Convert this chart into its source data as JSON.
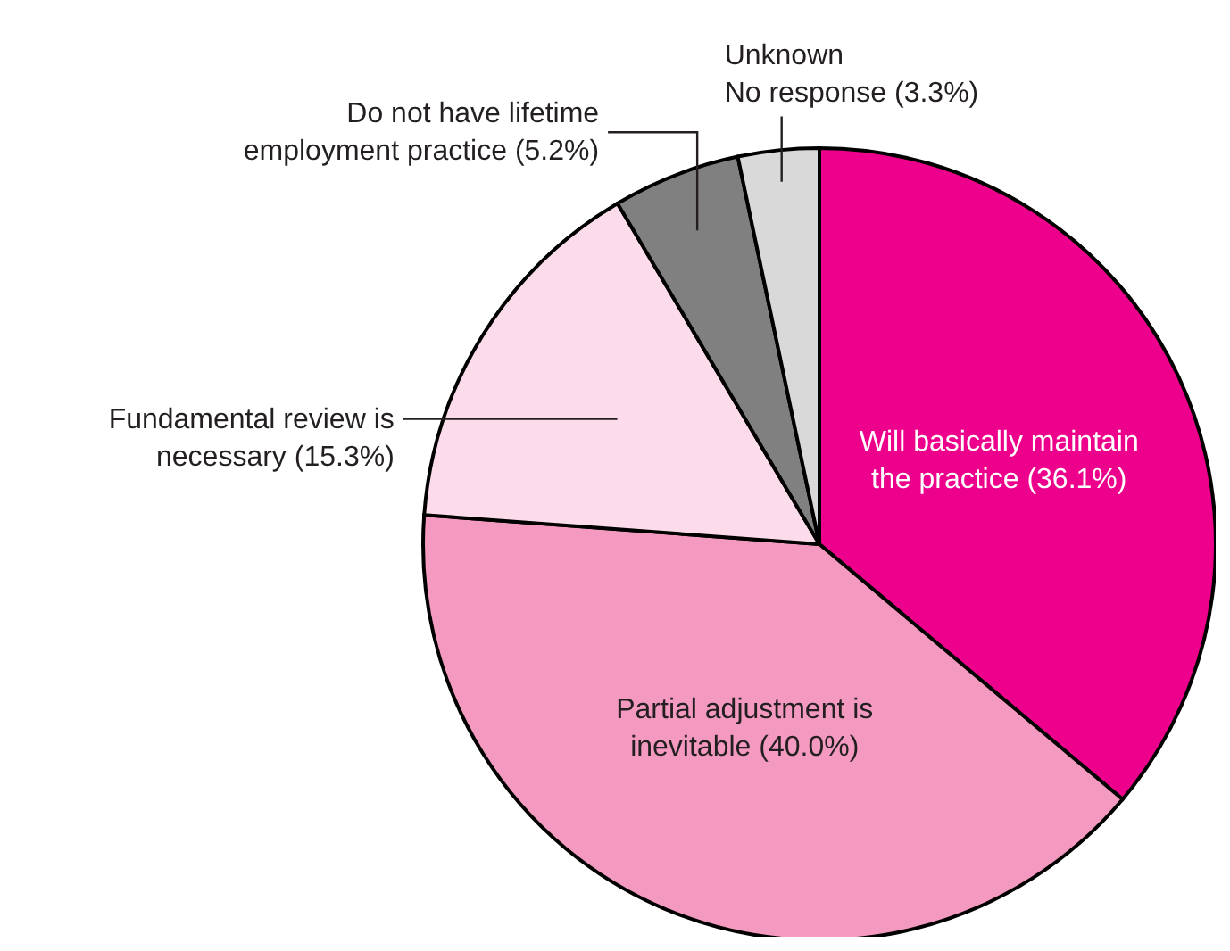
{
  "chart_data": {
    "type": "pie",
    "categories": [
      "Will basically maintain\nthe practice (36.1%)",
      "Partial adjustment is\ninevitable (40.0%)",
      "Fundamental review is\nnecessary (15.3%)",
      "Do not have lifetime\nemployment practice (5.2%)",
      "Unknown\nNo response (3.3%)"
    ],
    "values": [
      36.1,
      40.0,
      15.3,
      5.2,
      3.3
    ],
    "colors": [
      "#ec008c",
      "#f49ac1",
      "#fcdcea",
      "#808080",
      "#d9d9d9"
    ]
  }
}
